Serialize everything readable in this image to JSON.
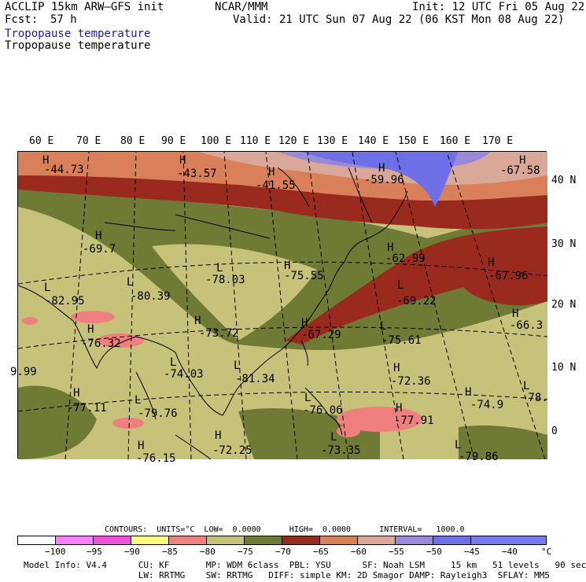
{
  "header": {
    "model": "ACCLIP 15km ARW–GFS init",
    "fcst_label": "Fcst:",
    "fcst_value": "57 h",
    "center": "NCAR/MMM",
    "init": "Init: 12 UTC Fri 05 Aug 22",
    "valid": "Valid: 21 UTC Sun 07 Aug 22 (06 KST Mon 08 Aug 22)",
    "field_title_blue": "Tropopause temperature",
    "field_title_black": "Tropopause temperature"
  },
  "map": {
    "lon_labels": [
      "60 E",
      "70 E",
      "80 E",
      "90 E",
      "100 E",
      "110 E",
      "120 E",
      "130 E",
      "140 E",
      "150 E",
      "160 E",
      "170 E"
    ],
    "lat_labels": [
      "40 N",
      "30 N",
      "20 N",
      "10 N",
      "0"
    ],
    "high_low_markers": [
      {
        "type": "H",
        "value": "-44.73"
      },
      {
        "type": "H",
        "value": "-43.57"
      },
      {
        "type": "H",
        "value": "-41.55"
      },
      {
        "type": "H",
        "value": "-59.96"
      },
      {
        "type": "H",
        "value": "-67.58"
      },
      {
        "type": "H",
        "value": "-69.7"
      },
      {
        "type": "L",
        "value": "-78.03"
      },
      {
        "type": "H",
        "value": "-75.55"
      },
      {
        "type": "H",
        "value": "-62.99"
      },
      {
        "type": "H",
        "value": "-67.96"
      },
      {
        "type": "L",
        "value": "-82.95"
      },
      {
        "type": "L",
        "value": "-80.39"
      },
      {
        "type": "L",
        "value": "-69.22"
      },
      {
        "type": "H",
        "value": "-66.3"
      },
      {
        "type": "H",
        "value": "-76.32"
      },
      {
        "type": "H",
        "value": "-73.72"
      },
      {
        "type": "H",
        "value": "-67.29"
      },
      {
        "type": "L",
        "value": "-75.61"
      },
      {
        "type": "L",
        "value": "-74.03"
      },
      {
        "type": "L",
        "value": "-81.34"
      },
      {
        "type": "H",
        "value": "-72.36"
      },
      {
        "type": "H",
        "value": "-77.11"
      },
      {
        "type": "L",
        "value": "-79.76"
      },
      {
        "type": "L",
        "value": "-76.06"
      },
      {
        "type": "H",
        "value": "-77.91"
      },
      {
        "type": "H",
        "value": "-74.9"
      },
      {
        "type": "L",
        "value": "-78."
      },
      {
        "type": "H",
        "value": "-72.25"
      },
      {
        "type": "L",
        "value": "-73.35"
      },
      {
        "type": "L",
        "value": "-79.86"
      },
      {
        "type": "H",
        "value": "-76.15"
      },
      {
        "type": "",
        "value": "9.99"
      }
    ]
  },
  "contours": {
    "line": "CONTOURS:  UNITS=°C  LOW=  0.0000      HIGH=  0.0000      INTERVAL=   1000.0"
  },
  "colorbar": {
    "colors": [
      "#ffffff",
      "#ff80ff",
      "#f050d8",
      "#ffff80",
      "#f08080",
      "#c7c27a",
      "#6f7a35",
      "#9a2a1e",
      "#d9805a",
      "#d9a898",
      "#9a88d8",
      "#6f6fe8",
      "#7a7af0"
    ],
    "labels": [
      "−100",
      "−95",
      "−90",
      "−85",
      "−80",
      "−75",
      "−70",
      "−65",
      "−60",
      "−55",
      "−50",
      "−45",
      "−40"
    ],
    "unit": "°C"
  },
  "footer": {
    "line1": "Model Info: V4.4      CU: KF       MP: WDM 6class  PBL: YSU      SF: Noah LSM     15 km   51 levels   90 sec",
    "line2": "                      LW: RRTMG    SW: RRTMG   DIFF: simple KM: 2D Smagor DAMP: Rayleigh3  SFLAY: MM5"
  }
}
